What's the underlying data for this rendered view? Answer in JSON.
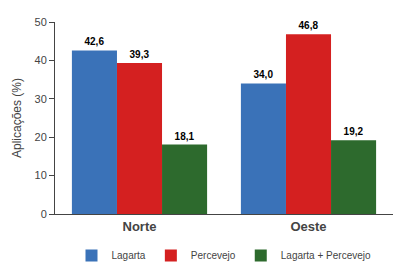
{
  "chart_data": {
    "type": "bar",
    "categories": [
      "Norte",
      "Oeste"
    ],
    "series": [
      {
        "name": "Lagarta",
        "color": "#3a72b8",
        "values": [
          42.6,
          34.0
        ],
        "value_labels": [
          "42,6",
          "34,0"
        ]
      },
      {
        "name": "Percevejo",
        "color": "#d42020",
        "values": [
          39.3,
          46.8
        ],
        "value_labels": [
          "39,3",
          "46,8"
        ]
      },
      {
        "name": "Lagarta + Percevejo",
        "color": "#2d6a2d",
        "values": [
          18.1,
          19.2
        ],
        "value_labels": [
          "18,1",
          "19,2"
        ]
      }
    ],
    "ylabel": "Aplicações (%)",
    "ylim": [
      0,
      50
    ],
    "yticks": [
      0,
      10,
      20,
      30,
      40,
      50
    ],
    "grid": false,
    "legend": "bottom",
    "data_labels": true
  }
}
